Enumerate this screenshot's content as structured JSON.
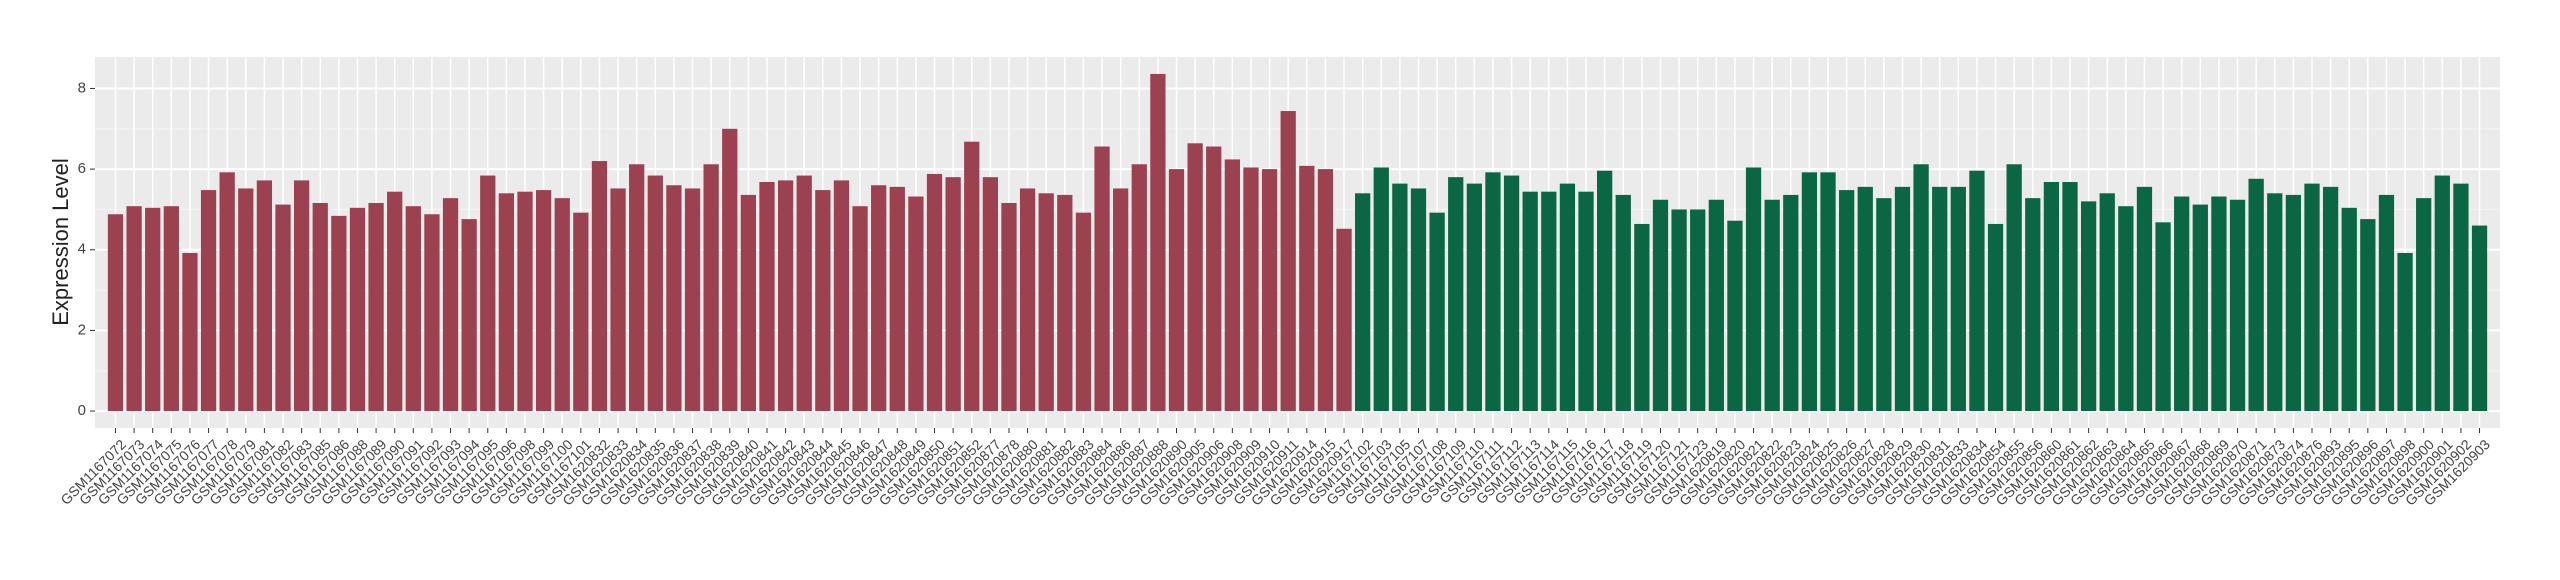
{
  "chart_data": {
    "type": "bar",
    "y_label": "Expression Level",
    "ylim": [
      -0.42,
      8.78
    ],
    "yticks": [
      0,
      2,
      4,
      6,
      8
    ],
    "grid": true,
    "series": [
      {
        "color": "#9b4150",
        "categories": [
          "GSM1167072",
          "GSM1167073",
          "GSM1167074",
          "GSM1167075",
          "GSM1167076",
          "GSM1167077",
          "GSM1167078",
          "GSM1167079",
          "GSM1167081",
          "GSM1167082",
          "GSM1167083",
          "GSM1167085",
          "GSM1167086",
          "GSM1167088",
          "GSM1167089",
          "GSM1167090",
          "GSM1167091",
          "GSM1167092",
          "GSM1167093",
          "GSM1167094",
          "GSM1167095",
          "GSM1167096",
          "GSM1167098",
          "GSM1167099",
          "GSM1167100",
          "GSM1167101",
          "GSM1620832",
          "GSM1620833",
          "GSM1620834",
          "GSM1620835",
          "GSM1620836",
          "GSM1620837",
          "GSM1620838",
          "GSM1620839",
          "GSM1620840",
          "GSM1620841",
          "GSM1620842",
          "GSM1620843",
          "GSM1620844",
          "GSM1620845",
          "GSM1620846",
          "GSM1620847",
          "GSM1620848",
          "GSM1620849",
          "GSM1620850",
          "GSM1620851",
          "GSM1620852",
          "GSM1620877",
          "GSM1620878",
          "GSM1620880",
          "GSM1620881",
          "GSM1620882",
          "GSM1620883",
          "GSM1620884",
          "GSM1620886",
          "GSM1620887",
          "GSM1620888",
          "GSM1620890",
          "GSM1620905",
          "GSM1620906",
          "GSM1620908",
          "GSM1620909",
          "GSM1620910",
          "GSM1620911",
          "GSM1620914",
          "GSM1620915",
          "GSM1620917"
        ],
        "values": [
          4.88,
          5.08,
          5.04,
          5.08,
          3.92,
          5.48,
          5.92,
          5.52,
          5.72,
          5.12,
          5.72,
          5.16,
          4.84,
          5.04,
          5.16,
          5.44,
          5.08,
          4.88,
          5.28,
          4.76,
          5.84,
          5.4,
          5.44,
          5.48,
          5.28,
          4.92,
          6.2,
          5.52,
          6.12,
          5.84,
          5.6,
          5.52,
          6.12,
          7.0,
          5.36,
          5.68,
          5.72,
          5.84,
          5.48,
          5.72,
          5.08,
          5.6,
          5.56,
          5.32,
          5.88,
          5.8,
          6.68,
          5.8,
          5.16,
          5.52,
          5.4,
          5.36,
          4.92,
          6.56,
          5.52,
          6.12,
          8.36,
          6.0,
          6.64,
          6.56,
          6.24,
          6.04,
          6.0,
          7.44,
          6.08,
          6.0,
          4.52
        ]
      },
      {
        "color": "#0b6643",
        "categories": [
          "GSM1167102",
          "GSM1167103",
          "GSM1167105",
          "GSM1167107",
          "GSM1167108",
          "GSM1167109",
          "GSM1167110",
          "GSM1167111",
          "GSM1167112",
          "GSM1167113",
          "GSM1167114",
          "GSM1167115",
          "GSM1167116",
          "GSM1167117",
          "GSM1167118",
          "GSM1167119",
          "GSM1167120",
          "GSM1167121",
          "GSM1167123",
          "GSM1620819",
          "GSM1620820",
          "GSM1620821",
          "GSM1620822",
          "GSM1620823",
          "GSM1620824",
          "GSM1620825",
          "GSM1620826",
          "GSM1620827",
          "GSM1620828",
          "GSM1620829",
          "GSM1620830",
          "GSM1620831",
          "GSM1620833",
          "GSM1620834",
          "GSM1620854",
          "GSM1620855",
          "GSM1620856",
          "GSM1620860",
          "GSM1620861",
          "GSM1620862",
          "GSM1620863",
          "GSM1620864",
          "GSM1620865",
          "GSM1620866",
          "GSM1620867",
          "GSM1620868",
          "GSM1620869",
          "GSM1620870",
          "GSM1620871",
          "GSM1620873",
          "GSM1620874",
          "GSM1620876",
          "GSM1620893",
          "GSM1620895",
          "GSM1620896",
          "GSM1620897",
          "GSM1620898",
          "GSM1620900",
          "GSM1620901",
          "GSM1620902",
          "GSM1620903"
        ],
        "values": [
          5.4,
          6.04,
          5.64,
          5.52,
          4.92,
          5.8,
          5.64,
          5.92,
          5.84,
          5.44,
          5.44,
          5.64,
          5.44,
          5.96,
          5.36,
          4.64,
          5.24,
          5.0,
          5.0,
          5.24,
          4.72,
          6.04,
          5.24,
          5.36,
          5.92,
          5.92,
          5.48,
          5.56,
          5.28,
          5.56,
          6.12,
          5.56,
          5.56,
          5.96,
          4.64,
          6.12,
          5.28,
          5.68,
          5.68,
          5.2,
          5.4,
          5.08,
          5.56,
          4.68,
          5.32,
          5.12,
          5.32,
          5.24,
          5.76,
          5.4,
          5.36,
          5.64,
          5.56,
          5.04,
          4.76,
          5.36,
          3.92,
          5.28,
          5.84,
          5.64,
          4.6
        ]
      }
    ]
  }
}
